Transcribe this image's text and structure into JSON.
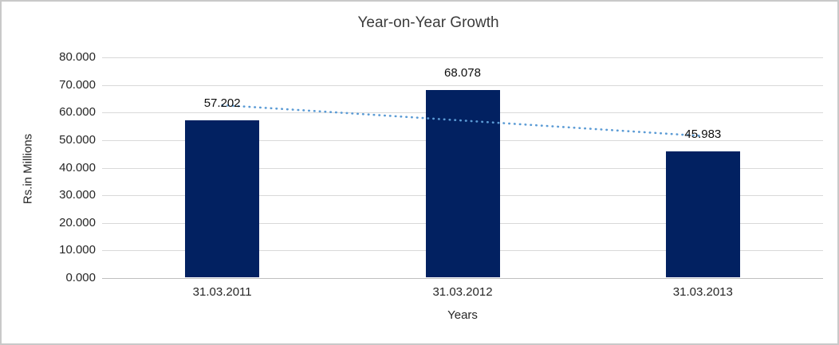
{
  "chart_data": {
    "type": "bar",
    "title": "Year-on-Year Growth",
    "xlabel": "Years",
    "ylabel": "Rs.in Millions",
    "categories": [
      "31.03.2011",
      "31.03.2012",
      "31.03.2013"
    ],
    "series": [
      {
        "name": "Rs.in Millions",
        "values": [
          57.202,
          68.078,
          45.983
        ],
        "labels": [
          "57.202",
          "68.078",
          "45.983"
        ]
      }
    ],
    "ylim": [
      0,
      80
    ],
    "ytick_step": 10,
    "ytick_labels": [
      "0.000",
      "10.000",
      "20.000",
      "30.000",
      "40.000",
      "50.000",
      "60.000",
      "70.000",
      "80.000"
    ],
    "grid": "horizontal",
    "legend": "none",
    "trendline": {
      "type": "linear",
      "style": "dotted",
      "color": "#5B9BD5",
      "endpoint_values": [
        62.7,
        51.5
      ]
    },
    "colors": {
      "bar": "#022161",
      "gridline": "#D9D9D9",
      "axis_line": "#BFBFBF",
      "title_text": "#3B3B3B",
      "tick_text": "#262626",
      "label_text": "#0D0D0D",
      "frame_border": "#C9C9C9",
      "background": "#FFFFFF"
    }
  }
}
